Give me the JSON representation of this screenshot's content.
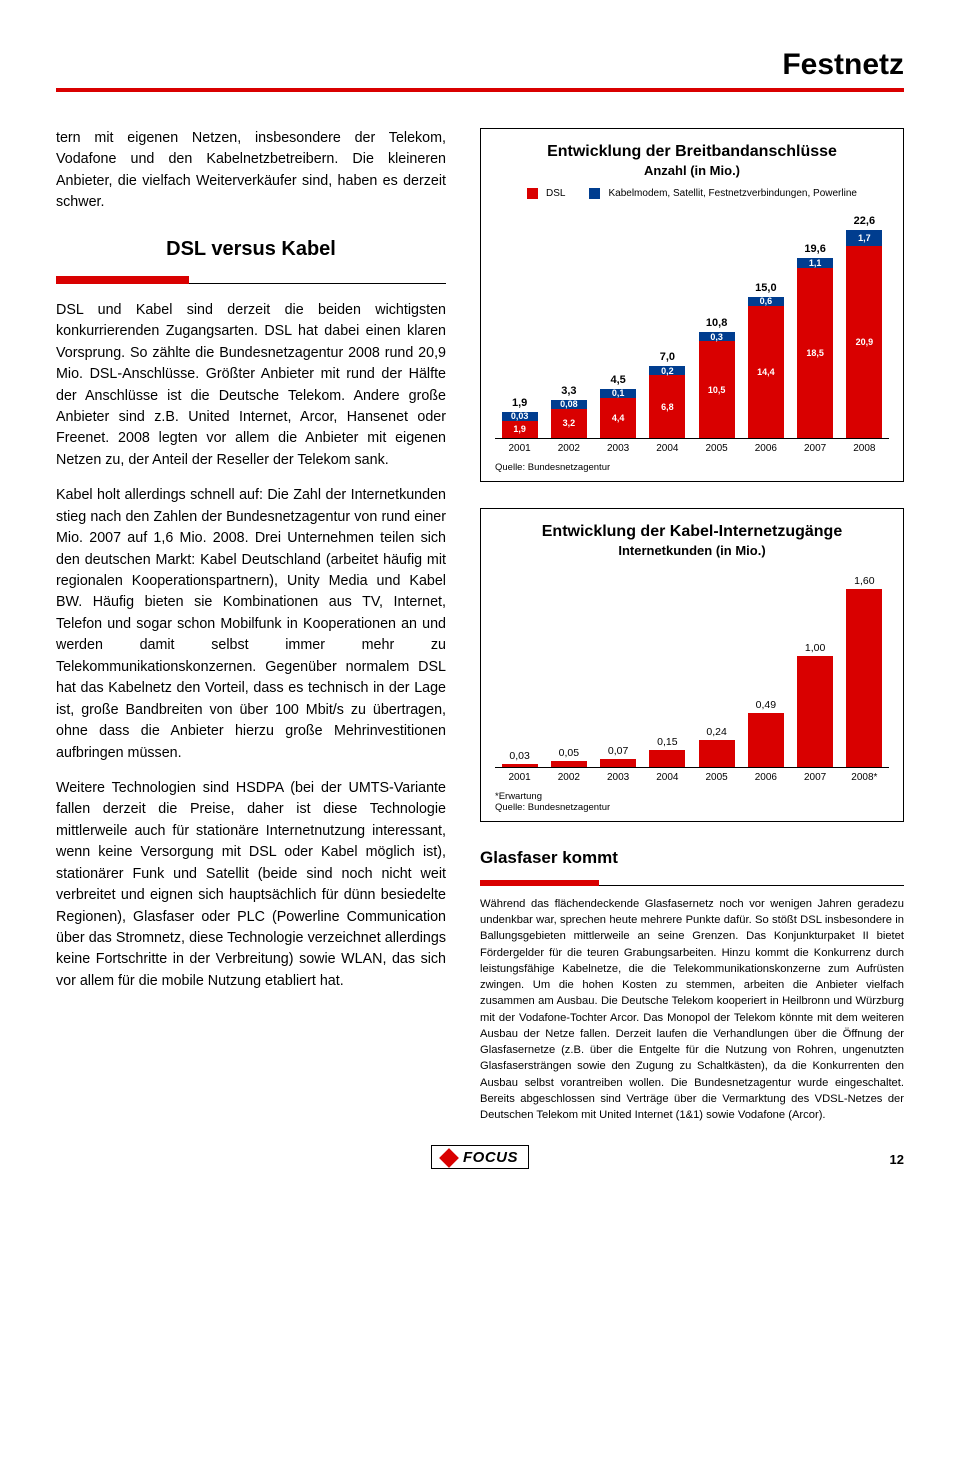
{
  "header": {
    "title": "Festnetz",
    "accent_color": "#d90000"
  },
  "left": {
    "p1": "tern mit eigenen Netzen, insbesondere der Telekom, Vodafone und den Kabelnetzbetreibern. Die kleineren Anbieter, die vielfach Weiterverkäufer sind, haben es derzeit schwer.",
    "heading": "DSL versus Kabel",
    "p2": "DSL und Kabel sind derzeit die beiden wichtigsten konkurrierenden Zugangsarten. DSL hat dabei einen klaren Vorsprung. So zählte die Bundesnetzagentur 2008 rund 20,9 Mio. DSL-Anschlüsse. Größter Anbieter mit rund der Hälfte der Anschlüsse ist die Deutsche Telekom. Andere große Anbieter sind z.B. United Internet, Arcor, Hansenet oder Freenet. 2008 legten vor allem die Anbieter mit eigenen Netzen zu, der Anteil der Reseller der Telekom sank.",
    "p3": "Kabel holt allerdings schnell auf: Die Zahl der Internetkunden stieg nach den Zahlen der Bundesnetzagentur von rund einer Mio. 2007 auf 1,6 Mio. 2008. Drei Unternehmen teilen sich den deutschen Markt: Kabel Deutschland (arbeitet häufig mit regionalen Kooperationspartnern), Unity Media und Kabel BW. Häufig bieten sie Kombinationen aus TV, Internet, Telefon und sogar schon Mobilfunk in Kooperationen an und werden damit selbst immer mehr zu Telekommunikationskonzernen. Gegenüber normalem DSL hat das Kabelnetz den Vorteil, dass es technisch in der Lage ist, große Bandbreiten von über 100 Mbit/s zu übertragen, ohne dass die Anbieter hierzu große Mehrinvestitionen aufbringen müssen.",
    "p4": "Weitere Technologien sind HSDPA (bei der UMTS-Variante fallen derzeit die Preise, daher ist diese Technologie mittlerweile auch für stationäre Internetnutzung interessant, wenn keine Versorgung mit DSL oder Kabel möglich ist), stationärer Funk und Satellit (beide sind noch nicht weit verbreitet und eignen sich hauptsächlich für dünn besiedelte Regionen), Glasfaser oder PLC (Powerline Communication über das Stromnetz, diese Technologie verzeichnet allerdings keine Fortschritte in der Verbreitung) sowie WLAN, das sich vor allem für die mobile Nutzung etabliert hat."
  },
  "chart1": {
    "title": "Entwicklung der Breitbandanschlüsse",
    "subtitle": "Anzahl (in Mio.)",
    "legend1": "DSL",
    "legend2": "Kabelmodem, Satellit, Festnetzverbindungen, Powerline",
    "color_dsl": "#d90000",
    "color_other": "#003d8f",
    "years": [
      "2001",
      "2002",
      "2003",
      "2004",
      "2005",
      "2006",
      "2007",
      "2008"
    ],
    "dsl": [
      1.9,
      3.2,
      4.4,
      6.8,
      10.5,
      14.4,
      18.5,
      20.9
    ],
    "other": [
      0.03,
      0.08,
      0.1,
      0.2,
      0.3,
      0.6,
      1.1,
      1.7
    ],
    "total": [
      "1,9",
      "3,3",
      "4,5",
      "7,0",
      "10,8",
      "15,0",
      "19,6",
      "22,6"
    ],
    "dsl_labels": [
      "1,9",
      "3,2",
      "4,4",
      "6,8",
      "10,5",
      "14,4",
      "18,5",
      "20,9"
    ],
    "other_labels": [
      "0,03",
      "0,08",
      "0,1",
      "0,2",
      "0,3",
      "0,6",
      "1,1",
      "1,7"
    ],
    "ymax": 25,
    "source": "Quelle:  Bundesnetzagentur"
  },
  "chart2": {
    "title": "Entwicklung der Kabel-Internetzugänge",
    "subtitle": "Internetkunden (in Mio.)",
    "color": "#d90000",
    "years": [
      "2001",
      "2002",
      "2003",
      "2004",
      "2005",
      "2006",
      "2007",
      "2008*"
    ],
    "values": [
      0.03,
      0.05,
      0.07,
      0.15,
      0.24,
      0.49,
      1.0,
      1.6
    ],
    "labels": [
      "0,03",
      "0,05",
      "0,07",
      "0,15",
      "0,24",
      "0,49",
      "1,00",
      "1,60"
    ],
    "ymax": 1.8,
    "note": "*Erwartung",
    "source": "Quelle:  Bundesnetzagentur"
  },
  "glasfaser": {
    "heading": "Glasfaser kommt",
    "text": "Während das flächendeckende Glasfasernetz noch vor wenigen Jahren geradezu undenkbar war, sprechen heute mehrere Punkte dafür. So stößt DSL insbesondere in Ballungsgebieten mittlerweile an seine Grenzen. Das Konjunkturpaket II bietet Fördergelder für die teuren Grabungsarbeiten. Hinzu kommt die Konkurrenz durch leistungsfähige Kabelnetze, die die Telekommunikationskonzerne zum Aufrüsten zwingen. Um die hohen Kosten zu stemmen, arbeiten die Anbieter vielfach zusammen am Ausbau. Die Deutsche Telekom kooperiert in Heilbronn und Würzburg mit der Vodafone-Tochter Arcor. Das Monopol der Telekom könnte mit dem weiteren Ausbau der Netze fallen. Derzeit laufen die Verhandlungen über die Öffnung der Glasfasernetze (z.B. über die Entgelte für die Nutzung von Rohren, ungenutzten Glasfasersträngen sowie den Zugung zu Schaltkästen), da die Konkurrenten den Ausbau selbst vorantreiben wollen. Die Bundesnetzagentur wurde eingeschaltet. Bereits abgeschlossen sind Verträge über die Vermarktung des VDSL-Netzes der Deutschen Telekom mit United Internet (1&1) sowie Vodafone (Arcor)."
  },
  "footer": {
    "logo": "FOCUS",
    "page": "12"
  }
}
